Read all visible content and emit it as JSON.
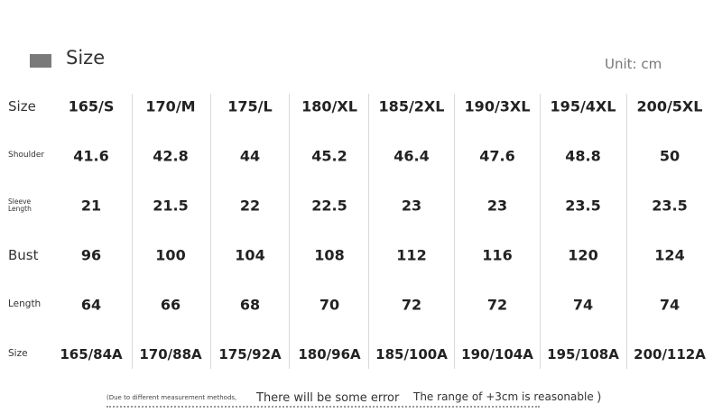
{
  "header": {
    "title": "Size",
    "unit": "Unit: cm"
  },
  "table": {
    "columns": [
      "165/S",
      "170/M",
      "175/L",
      "180/XL",
      "185/2XL",
      "190/3XL",
      "195/4XL",
      "200/5XL"
    ],
    "rows": [
      {
        "label": "Shoulder",
        "values": [
          "41.6",
          "42.8",
          "44",
          "45.2",
          "46.4",
          "47.6",
          "48.8",
          "50"
        ]
      },
      {
        "label": "Sleeve Length",
        "values": [
          "21",
          "21.5",
          "22",
          "22.5",
          "23",
          "23",
          "23.5",
          "23.5"
        ]
      },
      {
        "label": "Bust",
        "values": [
          "96",
          "100",
          "104",
          "108",
          "112",
          "116",
          "120",
          "124"
        ]
      },
      {
        "label": "Length",
        "values": [
          "64",
          "66",
          "68",
          "70",
          "72",
          "72",
          "74",
          "74"
        ]
      },
      {
        "label": "Size",
        "values": [
          "165/84A",
          "170/88A",
          "175/92A",
          "180/96A",
          "185/100A",
          "190/104A",
          "195/108A",
          "200/112A"
        ]
      }
    ],
    "header_label": "Size"
  },
  "footer": {
    "note_small": "(Due to different measurement methods,",
    "note_mid": "There will be some error",
    "note_right": "The range of +3cm is reasonable",
    "paren": ")"
  }
}
